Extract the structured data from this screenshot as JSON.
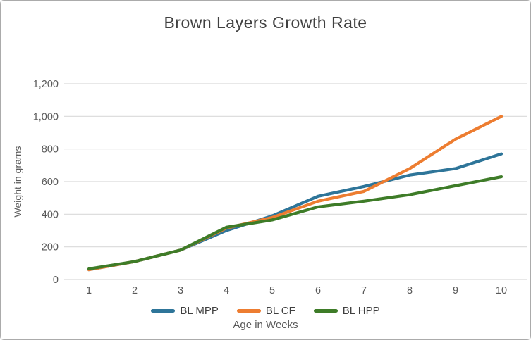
{
  "window": {
    "background_color": "#ffffff",
    "border_color": "#ababab"
  },
  "text_colors": {
    "title": "#404040",
    "axis_labels": "#595959",
    "legend_labels": "#404040"
  },
  "gridline_color": "#d9d9d9",
  "chart_data": {
    "type": "line",
    "title": "Brown Layers Growth Rate",
    "xlabel": "Age in Weeks",
    "ylabel": "Weight in grams",
    "categories": [
      1,
      2,
      3,
      4,
      5,
      6,
      7,
      8,
      9,
      10
    ],
    "series": [
      {
        "name": "BL MPP",
        "color": "#2e7599",
        "values": [
          60,
          110,
          180,
          300,
          390,
          510,
          570,
          640,
          680,
          770
        ]
      },
      {
        "name": "BL CF",
        "color": "#ed7d31",
        "values": [
          60,
          110,
          180,
          315,
          380,
          480,
          540,
          680,
          860,
          1000
        ]
      },
      {
        "name": "BL HPP",
        "color": "#3e7c28",
        "values": [
          65,
          110,
          180,
          320,
          365,
          445,
          480,
          520,
          575,
          630
        ]
      }
    ],
    "yticks": [
      0,
      200,
      400,
      600,
      800,
      1000,
      1200
    ],
    "ylim": [
      0,
      1200
    ],
    "grid": "horizontal",
    "legend_position": "bottom"
  }
}
